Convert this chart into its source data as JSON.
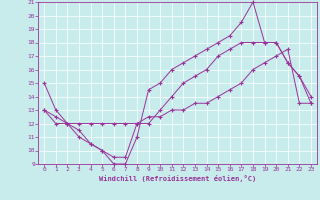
{
  "xlabel": "Windchill (Refroidissement éolien,°C)",
  "xlim": [
    -0.5,
    23.5
  ],
  "ylim": [
    9,
    21
  ],
  "yticks": [
    9,
    10,
    11,
    12,
    13,
    14,
    15,
    16,
    17,
    18,
    19,
    20,
    21
  ],
  "xticks": [
    0,
    1,
    2,
    3,
    4,
    5,
    6,
    7,
    8,
    9,
    10,
    11,
    12,
    13,
    14,
    15,
    16,
    17,
    18,
    19,
    20,
    21,
    22,
    23
  ],
  "bg_color": "#c8ecec",
  "line_color": "#993399",
  "grid_color": "#ffffff",
  "line1_x": [
    0,
    1,
    2,
    3,
    4,
    5,
    6,
    7,
    8,
    9,
    10,
    11,
    12,
    13,
    14,
    15,
    16,
    17,
    18,
    19,
    20,
    21,
    22,
    23
  ],
  "line1_y": [
    15,
    13,
    12,
    11.5,
    10.5,
    10,
    9,
    9,
    11,
    14.5,
    15,
    16,
    16.5,
    17,
    17.5,
    18,
    18.5,
    19.5,
    21,
    18,
    18,
    16.5,
    15.5,
    13.5
  ],
  "line2_x": [
    0,
    1,
    2,
    3,
    4,
    5,
    6,
    7,
    8,
    9,
    10,
    11,
    12,
    13,
    14,
    15,
    16,
    17,
    18,
    19,
    20,
    21,
    22,
    23
  ],
  "line2_y": [
    13,
    12,
    12,
    11,
    10.5,
    10,
    9.5,
    9.5,
    12,
    12,
    13,
    14,
    15,
    15.5,
    16,
    17,
    17.5,
    18,
    18,
    18,
    18,
    16.5,
    15.5,
    14
  ],
  "line3_x": [
    0,
    1,
    2,
    3,
    4,
    5,
    6,
    7,
    8,
    9,
    10,
    11,
    12,
    13,
    14,
    15,
    16,
    17,
    18,
    19,
    20,
    21,
    22,
    23
  ],
  "line3_y": [
    13,
    12.5,
    12,
    12,
    12,
    12,
    12,
    12,
    12,
    12.5,
    12.5,
    13,
    13,
    13.5,
    13.5,
    14,
    14.5,
    15,
    16,
    16.5,
    17,
    17.5,
    13.5,
    13.5
  ]
}
